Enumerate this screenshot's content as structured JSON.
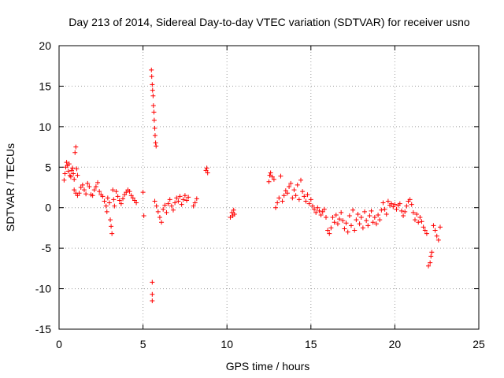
{
  "chart_data": {
    "type": "scatter",
    "title": "Day 213 of 2014, Sidereal Day-to-day VTEC variation (SDTVAR) for receiver usno",
    "xlabel": "GPS time / hours",
    "ylabel": "SDTVAR / TECUs",
    "xlim": [
      0,
      25
    ],
    "ylim": [
      -15,
      20
    ],
    "xticks": [
      "0",
      "5",
      "10",
      "15",
      "20",
      "25"
    ],
    "yticks": [
      "-15",
      "-10",
      "-5",
      "0",
      "5",
      "10",
      "15",
      "20"
    ],
    "xtick_values": [
      0,
      5,
      10,
      15,
      20,
      25
    ],
    "ytick_values": [
      -15,
      -10,
      -5,
      0,
      5,
      10,
      15,
      20
    ],
    "grid": true,
    "marker": "+",
    "marker_color": "#ff0000",
    "series": [
      {
        "name": "SDTVAR",
        "points": [
          [
            0.3,
            3.4
          ],
          [
            0.35,
            4.2
          ],
          [
            0.4,
            5.0
          ],
          [
            0.45,
            5.6
          ],
          [
            0.5,
            5.2
          ],
          [
            0.55,
            4.5
          ],
          [
            0.6,
            5.4
          ],
          [
            0.65,
            4.0
          ],
          [
            0.7,
            3.8
          ],
          [
            0.75,
            4.6
          ],
          [
            0.8,
            4.9
          ],
          [
            0.85,
            4.2
          ],
          [
            0.9,
            3.5
          ],
          [
            0.95,
            6.8
          ],
          [
            1.0,
            7.5
          ],
          [
            1.05,
            4.8
          ],
          [
            1.1,
            4.0
          ],
          [
            0.9,
            2.2
          ],
          [
            1.0,
            1.8
          ],
          [
            1.1,
            1.5
          ],
          [
            1.2,
            1.8
          ],
          [
            1.3,
            2.5
          ],
          [
            1.4,
            2.8
          ],
          [
            1.5,
            2.2
          ],
          [
            1.6,
            1.7
          ],
          [
            1.7,
            3.0
          ],
          [
            1.8,
            2.6
          ],
          [
            1.9,
            1.6
          ],
          [
            2.0,
            1.5
          ],
          [
            2.1,
            2.2
          ],
          [
            2.2,
            2.6
          ],
          [
            2.3,
            3.1
          ],
          [
            2.4,
            2.0
          ],
          [
            2.5,
            1.6
          ],
          [
            2.6,
            1.4
          ],
          [
            2.7,
            0.8
          ],
          [
            2.8,
            0.2
          ],
          [
            2.85,
            -0.5
          ],
          [
            2.9,
            1.2
          ],
          [
            3.0,
            0.6
          ],
          [
            3.05,
            -1.5
          ],
          [
            3.1,
            -2.3
          ],
          [
            3.15,
            -3.2
          ],
          [
            3.2,
            2.2
          ],
          [
            3.25,
            1.0
          ],
          [
            3.3,
            0.2
          ],
          [
            3.4,
            2.0
          ],
          [
            3.5,
            1.4
          ],
          [
            3.6,
            0.9
          ],
          [
            3.7,
            0.5
          ],
          [
            3.8,
            1.1
          ],
          [
            3.9,
            1.6
          ],
          [
            4.0,
            1.9
          ],
          [
            4.1,
            2.2
          ],
          [
            4.2,
            2.0
          ],
          [
            4.3,
            1.5
          ],
          [
            4.4,
            1.2
          ],
          [
            4.5,
            0.9
          ],
          [
            4.6,
            0.6
          ],
          [
            5.0,
            1.9
          ],
          [
            5.05,
            -1.0
          ],
          [
            5.5,
            17.0
          ],
          [
            5.52,
            16.2
          ],
          [
            5.55,
            15.2
          ],
          [
            5.57,
            14.5
          ],
          [
            5.6,
            13.8
          ],
          [
            5.62,
            12.6
          ],
          [
            5.65,
            11.8
          ],
          [
            5.67,
            10.8
          ],
          [
            5.7,
            9.8
          ],
          [
            5.72,
            8.9
          ],
          [
            5.75,
            8.0
          ],
          [
            5.78,
            7.6
          ],
          [
            5.55,
            -9.2
          ],
          [
            5.55,
            -10.7
          ],
          [
            5.55,
            -11.5
          ],
          [
            5.7,
            0.8
          ],
          [
            5.8,
            0.2
          ],
          [
            5.9,
            -0.5
          ],
          [
            6.0,
            -1.2
          ],
          [
            6.1,
            -1.8
          ],
          [
            6.2,
            -0.2
          ],
          [
            6.3,
            0.3
          ],
          [
            6.4,
            -0.6
          ],
          [
            6.5,
            0.5
          ],
          [
            6.6,
            1.0
          ],
          [
            6.7,
            0.2
          ],
          [
            6.8,
            -0.3
          ],
          [
            6.9,
            0.6
          ],
          [
            7.0,
            1.2
          ],
          [
            7.1,
            0.8
          ],
          [
            7.2,
            1.4
          ],
          [
            7.3,
            0.4
          ],
          [
            7.4,
            1.0
          ],
          [
            7.5,
            1.5
          ],
          [
            7.6,
            0.9
          ],
          [
            7.7,
            1.3
          ],
          [
            8.0,
            0.2
          ],
          [
            8.1,
            0.6
          ],
          [
            8.2,
            1.1
          ],
          [
            8.75,
            4.6
          ],
          [
            8.8,
            4.9
          ],
          [
            8.85,
            4.3
          ],
          [
            10.2,
            -1.2
          ],
          [
            10.3,
            -0.6
          ],
          [
            10.35,
            -1.0
          ],
          [
            10.4,
            -0.3
          ],
          [
            10.45,
            -0.8
          ],
          [
            12.5,
            3.2
          ],
          [
            12.55,
            4.0
          ],
          [
            12.6,
            4.3
          ],
          [
            12.7,
            3.8
          ],
          [
            12.8,
            3.5
          ],
          [
            12.9,
            0.0
          ],
          [
            13.0,
            0.6
          ],
          [
            13.1,
            1.2
          ],
          [
            13.2,
            3.9
          ],
          [
            13.3,
            0.8
          ],
          [
            13.4,
            1.5
          ],
          [
            13.5,
            2.1
          ],
          [
            13.6,
            1.8
          ],
          [
            13.7,
            2.6
          ],
          [
            13.8,
            3.0
          ],
          [
            13.9,
            1.2
          ],
          [
            14.0,
            2.2
          ],
          [
            14.1,
            1.5
          ],
          [
            14.2,
            2.8
          ],
          [
            14.3,
            1.0
          ],
          [
            14.4,
            3.4
          ],
          [
            14.5,
            2.0
          ],
          [
            14.6,
            1.4
          ],
          [
            14.7,
            0.8
          ],
          [
            14.8,
            1.6
          ],
          [
            14.9,
            0.5
          ],
          [
            15.0,
            1.0
          ],
          [
            15.1,
            0.2
          ],
          [
            15.2,
            -0.2
          ],
          [
            15.3,
            -0.6
          ],
          [
            15.4,
            0.0
          ],
          [
            15.5,
            -0.4
          ],
          [
            15.6,
            -0.9
          ],
          [
            15.7,
            -0.5
          ],
          [
            15.8,
            -0.2
          ],
          [
            15.9,
            -1.2
          ],
          [
            16.0,
            -2.8
          ],
          [
            16.1,
            -3.2
          ],
          [
            16.2,
            -2.5
          ],
          [
            16.3,
            -1.2
          ],
          [
            16.4,
            -1.8
          ],
          [
            16.5,
            -0.9
          ],
          [
            16.6,
            -2.0
          ],
          [
            16.7,
            -1.4
          ],
          [
            16.8,
            -0.6
          ],
          [
            16.9,
            -1.6
          ],
          [
            17.0,
            -2.6
          ],
          [
            17.1,
            -1.9
          ],
          [
            17.2,
            -3.0
          ],
          [
            17.3,
            -1.0
          ],
          [
            17.4,
            -2.2
          ],
          [
            17.5,
            -0.3
          ],
          [
            17.6,
            -2.8
          ],
          [
            17.7,
            -1.5
          ],
          [
            17.8,
            -0.8
          ],
          [
            17.9,
            -2.0
          ],
          [
            18.0,
            -1.2
          ],
          [
            18.1,
            -2.5
          ],
          [
            18.2,
            -0.5
          ],
          [
            18.3,
            -1.6
          ],
          [
            18.4,
            -2.2
          ],
          [
            18.5,
            -1.0
          ],
          [
            18.6,
            -0.4
          ],
          [
            18.7,
            -1.8
          ],
          [
            18.8,
            -1.2
          ],
          [
            18.9,
            -2.0
          ],
          [
            19.0,
            -0.9
          ],
          [
            19.1,
            -1.5
          ],
          [
            19.2,
            -0.3
          ],
          [
            19.3,
            0.6
          ],
          [
            19.4,
            -0.2
          ],
          [
            19.5,
            -0.8
          ],
          [
            19.6,
            0.8
          ],
          [
            19.7,
            0.3
          ],
          [
            19.8,
            0.5
          ],
          [
            19.9,
            0.1
          ],
          [
            20.0,
            0.4
          ],
          [
            20.1,
            -0.2
          ],
          [
            20.2,
            0.3
          ],
          [
            20.3,
            0.5
          ],
          [
            20.4,
            -0.4
          ],
          [
            20.5,
            -1.0
          ],
          [
            20.6,
            -0.5
          ],
          [
            20.7,
            0.2
          ],
          [
            20.8,
            0.8
          ],
          [
            20.9,
            1.0
          ],
          [
            21.0,
            0.4
          ],
          [
            21.1,
            -0.6
          ],
          [
            21.2,
            -1.5
          ],
          [
            21.3,
            -0.8
          ],
          [
            21.4,
            -1.8
          ],
          [
            21.5,
            -1.2
          ],
          [
            21.6,
            -1.7
          ],
          [
            21.7,
            -2.4
          ],
          [
            21.8,
            -2.8
          ],
          [
            21.9,
            -3.2
          ],
          [
            22.0,
            -7.2
          ],
          [
            22.1,
            -6.8
          ],
          [
            22.15,
            -6.0
          ],
          [
            22.2,
            -5.5
          ],
          [
            22.3,
            -2.2
          ],
          [
            22.4,
            -2.8
          ],
          [
            22.5,
            -3.5
          ],
          [
            22.6,
            -4.0
          ],
          [
            22.7,
            -2.4
          ]
        ]
      }
    ]
  }
}
